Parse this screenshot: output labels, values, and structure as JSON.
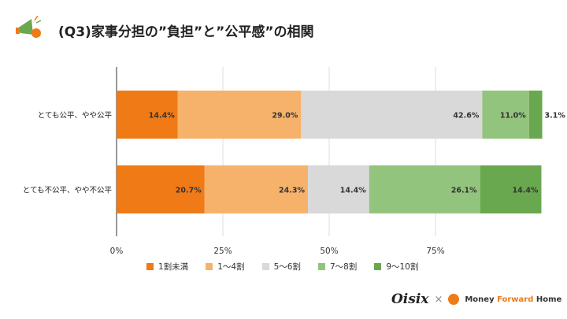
{
  "title": "(Q3)家事分担の”負担”と”公平感”の相関",
  "chart_data": {
    "type": "bar",
    "stacked": true,
    "orientation": "horizontal",
    "categories": [
      "とても公平、やや公平",
      "とても不公平、やや不公平"
    ],
    "series": [
      {
        "name": "1割未満",
        "color": "#f07a16",
        "values": [
          14.4,
          20.7
        ],
        "labels": [
          "14.4%",
          "20.7%"
        ]
      },
      {
        "name": "1～4割",
        "color": "#f6b26b",
        "values": [
          29.0,
          24.3
        ],
        "labels": [
          "29.0%",
          "24.3%"
        ]
      },
      {
        "name": "5～6割",
        "color": "#d9d9d9",
        "values": [
          42.6,
          14.4
        ],
        "labels": [
          "42.6%",
          "14.4%"
        ]
      },
      {
        "name": "7～8割",
        "color": "#93c47d",
        "values": [
          11.0,
          26.1
        ],
        "labels": [
          "11.0%",
          "26.1%"
        ]
      },
      {
        "name": "9～10割",
        "color": "#6aa84f",
        "values": [
          3.1,
          14.4
        ],
        "labels": [
          "3.1%",
          "14.4%"
        ]
      }
    ],
    "xlim": [
      0,
      100
    ],
    "xticks": [
      "0%",
      "25%",
      "50%",
      "75%"
    ],
    "legend": "bottom",
    "grid": true
  },
  "logos": {
    "oisix": "Oisix",
    "times": "×",
    "mf_a": "Money ",
    "mf_b": "Forward",
    "mf_c": " Home"
  }
}
